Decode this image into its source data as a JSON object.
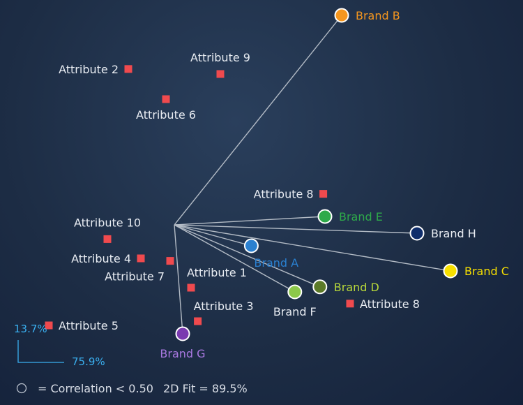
{
  "chart_data": {
    "type": "scatter",
    "origin": [
      0,
      0
    ],
    "xlim": [
      -2.0,
      4.0
    ],
    "ylim": [
      -1.4,
      2.6
    ],
    "brands": [
      {
        "label": "Brand B",
        "x": 2.0,
        "y": 2.5,
        "color": "#f5961e",
        "label_color": "#f5961e",
        "label_pos": "right"
      },
      {
        "label": "Brand E",
        "x": 1.8,
        "y": 0.1,
        "color": "#2eaa4a",
        "label_color": "#2eaa4a",
        "label_pos": "right"
      },
      {
        "label": "Brand H",
        "x": 2.9,
        "y": -0.1,
        "color": "#0f2d6b",
        "label_color": "#e8ecf2",
        "label_pos": "right"
      },
      {
        "label": "Brand A",
        "x": 0.92,
        "y": -0.25,
        "color": "#2a80d0",
        "label_color": "#2a80d0",
        "label_pos": "below-right"
      },
      {
        "label": "Brand C",
        "x": 3.3,
        "y": -0.55,
        "color": "#f8e000",
        "label_color": "#f8e000",
        "label_pos": "right"
      },
      {
        "label": "Brand D",
        "x": 1.74,
        "y": -0.74,
        "color": "#5c7a28",
        "label_color": "#b8d83a",
        "label_pos": "right"
      },
      {
        "label": "Brand F",
        "x": 1.44,
        "y": -0.8,
        "color": "#8cc84a",
        "label_color": "#e8ecf2",
        "label_pos": "below"
      },
      {
        "label": "Brand G",
        "x": 0.1,
        "y": -1.3,
        "color": "#7a3ab0",
        "label_color": "#a878e0",
        "label_pos": "below"
      }
    ],
    "attributes": [
      {
        "label": "Attribute 2",
        "x": -0.55,
        "y": 1.86,
        "label_pos": "left"
      },
      {
        "label": "Attribute 9",
        "x": 0.55,
        "y": 1.8,
        "label_pos": "above"
      },
      {
        "label": "Attribute 6",
        "x": -0.1,
        "y": 1.5,
        "label_pos": "below"
      },
      {
        "label": "Attribute 8",
        "x": 1.78,
        "y": 0.37,
        "label_pos": "left"
      },
      {
        "label": "Attribute 10",
        "x": -0.8,
        "y": -0.17,
        "label_pos": "above"
      },
      {
        "label": "Attribute 4",
        "x": -0.4,
        "y": -0.4,
        "label_pos": "left"
      },
      {
        "label": "Attribute 7",
        "x": -0.05,
        "y": -0.43,
        "label_pos": "below-left"
      },
      {
        "label": "Attribute 1",
        "x": 0.2,
        "y": -0.75,
        "label_pos": "above-right"
      },
      {
        "label": "Attribute 3",
        "x": 0.28,
        "y": -1.15,
        "label_pos": "above-right"
      },
      {
        "label": "Attribute 8",
        "x": 2.1,
        "y": -0.94,
        "label_pos": "right"
      },
      {
        "label": "Attribute 5",
        "x": -1.5,
        "y": -1.2,
        "label_pos": "right"
      }
    ],
    "axis_legend": {
      "y_percent": "13.7%",
      "x_percent": "75.9%"
    },
    "footnote": {
      "symbol_text": "= Correlation < 0.50",
      "fit_text": "2D Fit = 89.5%"
    }
  }
}
